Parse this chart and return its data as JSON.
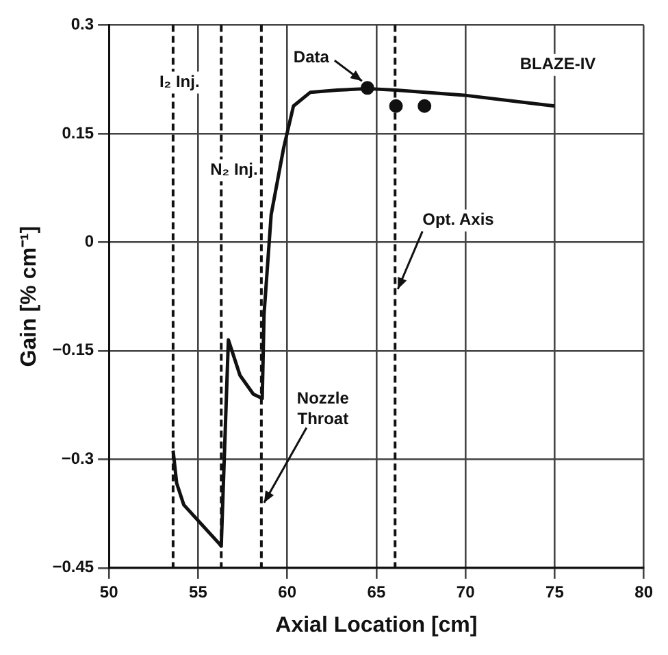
{
  "chart_data": {
    "type": "line",
    "xlabel": "Axial Location [cm]",
    "ylabel": "Gain [% cm⁻¹]",
    "xlim": [
      50,
      80
    ],
    "xticks": [
      50,
      55,
      60,
      65,
      70,
      75,
      80
    ],
    "ylim": [
      -0.45,
      0.3
    ],
    "yticks": [
      -0.45,
      -0.3,
      -0.15,
      0,
      0.15,
      0.3
    ],
    "grid": true,
    "legend": false,
    "series": [
      {
        "name": "BLAZE-IV",
        "type": "line",
        "color": "#111111",
        "marker": "none",
        "line_style": "solid",
        "x": [
          53.6,
          53.8,
          54.2,
          56.2,
          56.3,
          56.7,
          57.35,
          58.1,
          58.6,
          58.7,
          59.1,
          59.8,
          60.35,
          61.3,
          62.8,
          64.5,
          66.1,
          69.9,
          75
        ],
        "values": [
          -0.288,
          -0.333,
          -0.363,
          -0.417,
          -0.42,
          -0.135,
          -0.184,
          -0.21,
          -0.216,
          -0.1,
          0.038,
          0.13,
          0.188,
          0.207,
          0.21,
          0.212,
          0.21,
          0.203,
          0.188
        ]
      },
      {
        "name": "Data",
        "type": "scatter",
        "color": "#111111",
        "marker": "circle",
        "x": [
          64.5,
          66.1,
          67.7
        ],
        "values": [
          0.213,
          0.188,
          0.188
        ]
      }
    ],
    "ref_lines": [
      {
        "axis": "x",
        "value": 53.6,
        "label": "I₂ Inj.",
        "line_style": "dashed",
        "color": "#111111"
      },
      {
        "axis": "x",
        "value": 56.3,
        "label": "N₂ Inj.",
        "line_style": "dashed",
        "color": "#111111"
      },
      {
        "axis": "x",
        "value": 58.55,
        "label": "Nozzle Throat",
        "line_style": "dashed",
        "color": "#111111"
      },
      {
        "axis": "x",
        "value": 66.05,
        "label": "Opt. Axis",
        "line_style": "dashed",
        "color": "#111111"
      }
    ]
  }
}
